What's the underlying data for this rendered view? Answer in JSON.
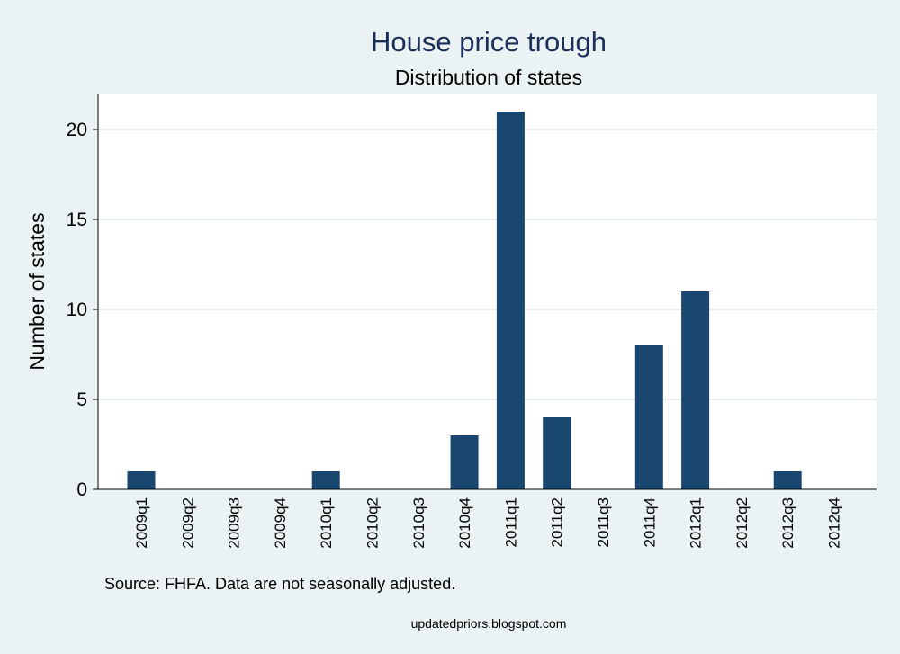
{
  "chart_data": {
    "type": "bar",
    "title": "House price trough",
    "subtitle": "Distribution of states",
    "xlabel": "",
    "ylabel": "Number of states",
    "ylim": [
      0,
      22
    ],
    "yticks": [
      0,
      5,
      10,
      15,
      20
    ],
    "grid": true,
    "categories": [
      "2009q1",
      "2009q2",
      "2009q3",
      "2009q4",
      "2010q1",
      "2010q2",
      "2010q3",
      "2010q4",
      "2011q1",
      "2011q2",
      "2011q3",
      "2011q4",
      "2012q1",
      "2012q2",
      "2012q3",
      "2012q4"
    ],
    "values": [
      1,
      0,
      0,
      0,
      1,
      0,
      0,
      3,
      21,
      4,
      0,
      8,
      11,
      0,
      1,
      0
    ],
    "bar_color": "#1a476f",
    "note": "Source: FHFA. Data are not seasonally adjusted.",
    "credit": "updatedpriors.blogspot.com"
  }
}
